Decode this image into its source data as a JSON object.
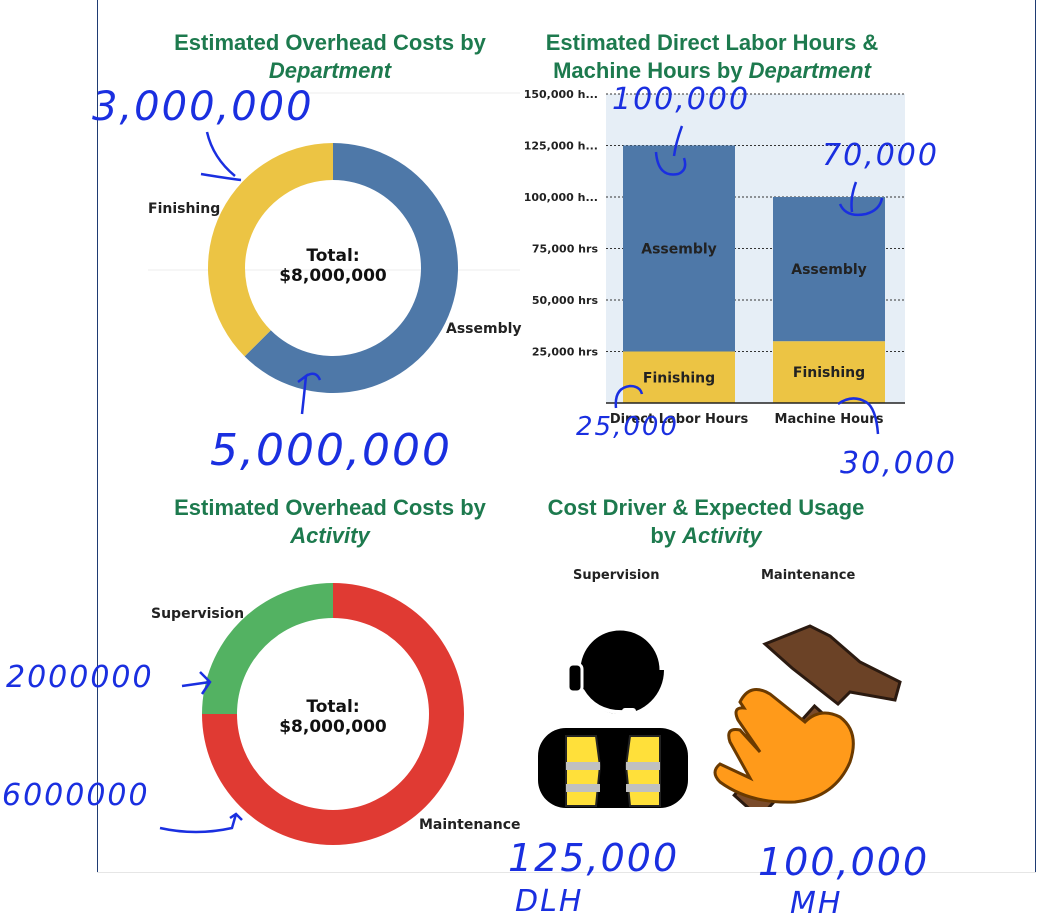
{
  "titles": {
    "dept_costs_line1": "Estimated Overhead Costs by",
    "dept_costs_line2": "Department",
    "hours_line1": "Estimated Direct Labor Hours &",
    "hours_line2a": "Machine Hours by ",
    "hours_line2b": "Department",
    "activity_costs_line1": "Estimated Overhead Costs by",
    "activity_costs_line2": "Activity",
    "driver_line1": "Cost Driver & Expected Usage",
    "driver_line2a": "by ",
    "driver_line2b": "Activity"
  },
  "donut_dept": {
    "total_label": "Total:",
    "total_value": "$8,000,000",
    "labels": {
      "finishing": "Finishing",
      "assembly": "Assembly"
    }
  },
  "donut_activity": {
    "total_label": "Total:",
    "total_value": "$8,000,000",
    "labels": {
      "supervision": "Supervision",
      "maintenance": "Maintenance"
    }
  },
  "drivers": {
    "supervision_label": "Supervision",
    "maintenance_label": "Maintenance",
    "supervision_icon": "worker-headset-icon",
    "maintenance_icon": "hammer-hand-icon"
  },
  "annotations": {
    "dept_finishing": "3,000,000",
    "dept_assembly": "5,000,000",
    "dlh_total": "100,000",
    "mh_total": "70,000",
    "dlh_finishing": "25,000",
    "mh_finishing": "30,000",
    "act_supervision": "2000000",
    "act_maintenance": "6000000",
    "supervision_usage": "125,000",
    "supervision_unit": "DLH",
    "maintenance_usage": "100,000",
    "maintenance_unit": "MH"
  },
  "colors": {
    "title_green": "#1d7a4e",
    "blue": "#4e78a8",
    "yellow": "#ecc444",
    "green": "#53b262",
    "red": "#e03a33",
    "ink": "#1a2fe0"
  },
  "chart_data": [
    {
      "type": "pie",
      "title": "Estimated Overhead Costs by Department",
      "categories": [
        "Assembly",
        "Finishing"
      ],
      "values": [
        5000000,
        3000000
      ],
      "colors": [
        "#4e78a8",
        "#ecc444"
      ],
      "center_label": "Total: $8,000,000"
    },
    {
      "type": "bar",
      "stacked": true,
      "title": "Estimated Direct Labor Hours & Machine Hours by Department",
      "categories": [
        "Direct Labor Hours",
        "Machine Hours"
      ],
      "series": [
        {
          "name": "Finishing",
          "values": [
            25000,
            30000
          ],
          "color": "#ecc444"
        },
        {
          "name": "Assembly",
          "values": [
            100000,
            70000
          ],
          "color": "#4e78a8"
        }
      ],
      "yticks": [
        "25,000 hrs",
        "50,000 hrs",
        "75,000 hrs",
        "100,000 h...",
        "125,000 h...",
        "150,000 h..."
      ],
      "ytick_values": [
        25000,
        50000,
        75000,
        100000,
        125000,
        150000
      ],
      "ylim": [
        0,
        150000
      ],
      "grid": true
    },
    {
      "type": "pie",
      "title": "Estimated Overhead Costs by Activity",
      "categories": [
        "Maintenance",
        "Supervision"
      ],
      "values": [
        6000000,
        2000000
      ],
      "colors": [
        "#e03a33",
        "#53b262"
      ],
      "center_label": "Total: $8,000,000"
    }
  ]
}
